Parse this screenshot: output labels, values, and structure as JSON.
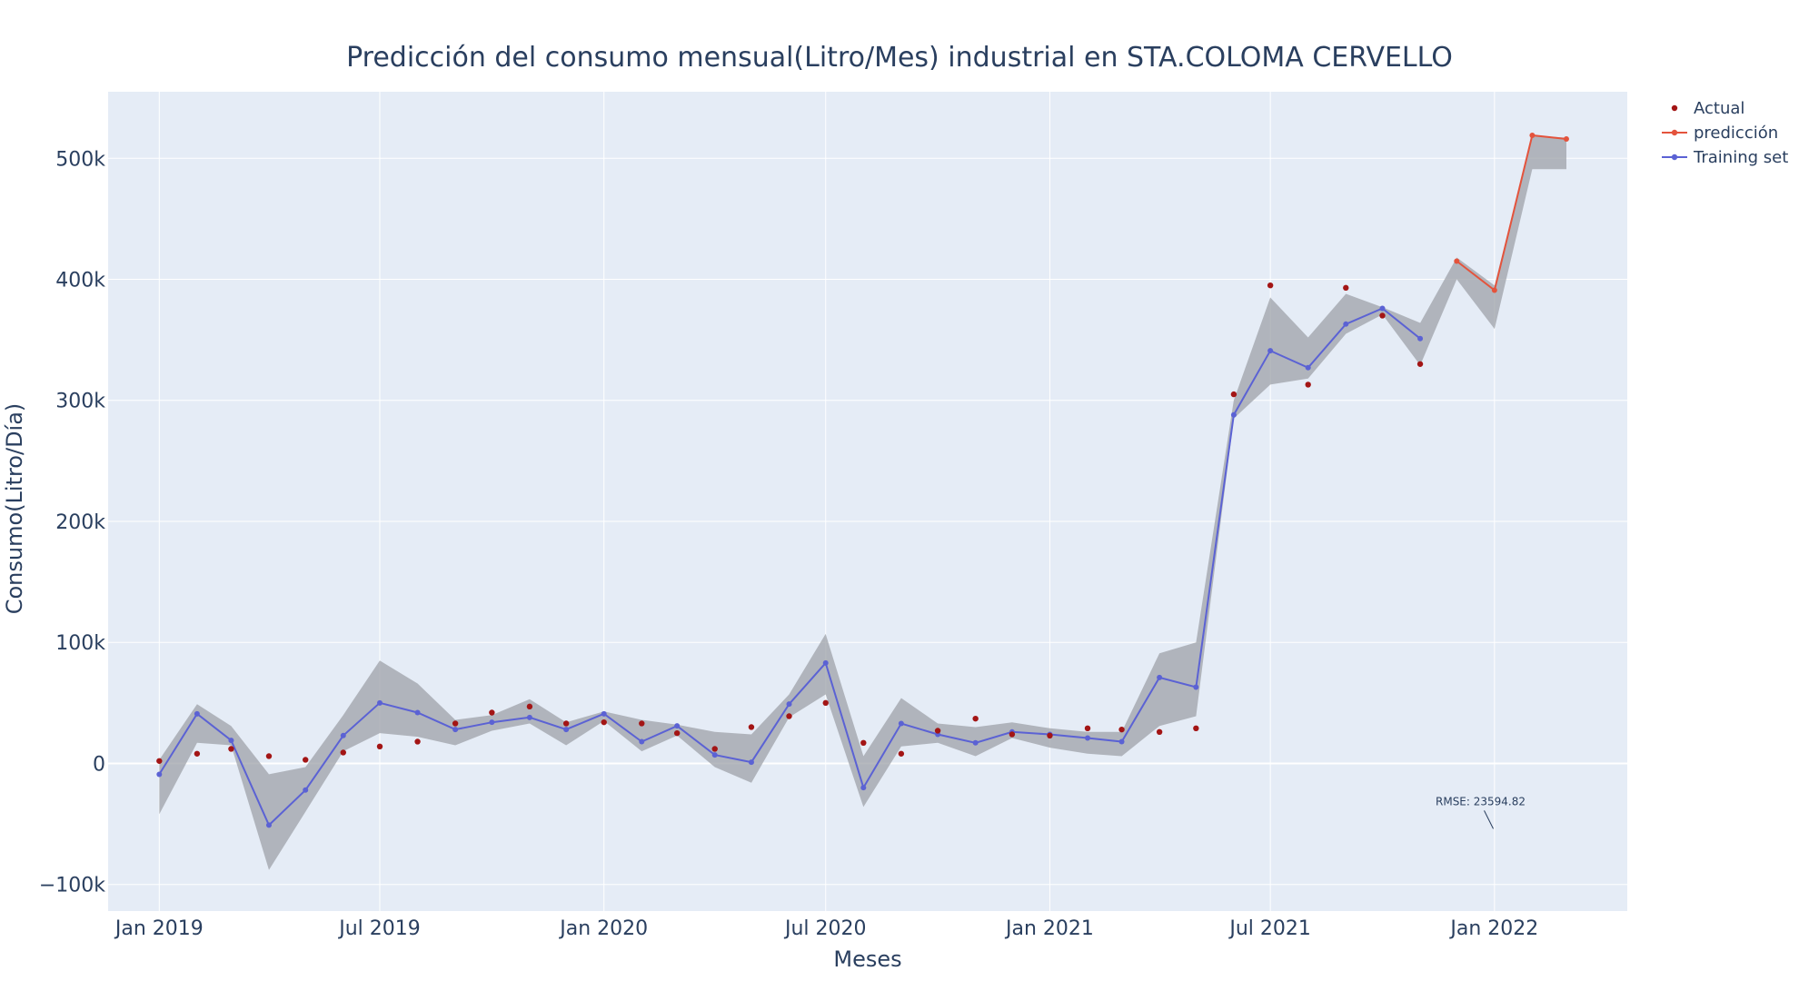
{
  "chart_data": {
    "type": "line",
    "title": "Predicción del consumo mensual(Litro/Mes) industrial en STA.COLOMA CERVELLO",
    "xlabel": "Meses",
    "ylabel": "Consumo(Litro/Día)",
    "xlim": [
      "2018-11-20",
      "2022-04-20"
    ],
    "ylim": [
      -122000,
      555000
    ],
    "grid": true,
    "legend_position": "top-right",
    "x_ticks": [
      {
        "date": "2019-01-01",
        "label": "Jan 2019"
      },
      {
        "date": "2019-07-01",
        "label": "Jul 2019"
      },
      {
        "date": "2020-01-01",
        "label": "Jan 2020"
      },
      {
        "date": "2020-07-01",
        "label": "Jul 2020"
      },
      {
        "date": "2021-01-01",
        "label": "Jan 2021"
      },
      {
        "date": "2021-07-01",
        "label": "Jul 2021"
      },
      {
        "date": "2022-01-01",
        "label": "Jan 2022"
      }
    ],
    "y_ticks": [
      {
        "value": -100000,
        "label": "−100k"
      },
      {
        "value": 0,
        "label": "0"
      },
      {
        "value": 100000,
        "label": "100k"
      },
      {
        "value": 200000,
        "label": "200k"
      },
      {
        "value": 300000,
        "label": "300k"
      },
      {
        "value": 400000,
        "label": "400k"
      },
      {
        "value": 500000,
        "label": "500k"
      }
    ],
    "colors": {
      "actual": "#a31515",
      "prediction": "#e4533c",
      "training": "#5b62d4",
      "band": "#9ea2a8",
      "plot_bg": "#e5ecf6",
      "grid": "#ffffff"
    },
    "series": [
      {
        "name": "Actual",
        "mode": "markers",
        "points": [
          [
            "2019-01-01",
            2000
          ],
          [
            "2019-02-01",
            8000
          ],
          [
            "2019-03-01",
            12000
          ],
          [
            "2019-04-01",
            6000
          ],
          [
            "2019-05-01",
            3000
          ],
          [
            "2019-06-01",
            9000
          ],
          [
            "2019-07-01",
            14000
          ],
          [
            "2019-08-01",
            18000
          ],
          [
            "2019-09-01",
            33000
          ],
          [
            "2019-10-01",
            42000
          ],
          [
            "2019-11-01",
            47000
          ],
          [
            "2019-12-01",
            33000
          ],
          [
            "2020-01-01",
            34000
          ],
          [
            "2020-02-01",
            33000
          ],
          [
            "2020-03-01",
            25000
          ],
          [
            "2020-04-01",
            12000
          ],
          [
            "2020-05-01",
            30000
          ],
          [
            "2020-06-01",
            39000
          ],
          [
            "2020-07-01",
            50000
          ],
          [
            "2020-08-01",
            17000
          ],
          [
            "2020-09-01",
            8000
          ],
          [
            "2020-10-01",
            27000
          ],
          [
            "2020-11-01",
            37000
          ],
          [
            "2020-12-01",
            24000
          ],
          [
            "2021-01-01",
            23000
          ],
          [
            "2021-02-01",
            29000
          ],
          [
            "2021-03-01",
            28000
          ],
          [
            "2021-04-01",
            26000
          ],
          [
            "2021-05-01",
            29000
          ],
          [
            "2021-06-01",
            305000
          ],
          [
            "2021-07-01",
            395000
          ],
          [
            "2021-08-01",
            313000
          ],
          [
            "2021-09-01",
            393000
          ],
          [
            "2021-10-01",
            370000
          ],
          [
            "2021-11-01",
            330000
          ]
        ]
      },
      {
        "name": "predicción",
        "mode": "lines+markers",
        "points": [
          [
            "2021-12-01",
            415000
          ],
          [
            "2022-01-01",
            391000
          ],
          [
            "2022-02-01",
            519000
          ],
          [
            "2022-03-01",
            516000
          ]
        ]
      },
      {
        "name": "Training set",
        "mode": "lines+markers",
        "points": [
          [
            "2019-01-01",
            -9000
          ],
          [
            "2019-02-01",
            41000
          ],
          [
            "2019-03-01",
            19000
          ],
          [
            "2019-04-01",
            -51000
          ],
          [
            "2019-05-01",
            -22000
          ],
          [
            "2019-06-01",
            23000
          ],
          [
            "2019-07-01",
            50000
          ],
          [
            "2019-08-01",
            42000
          ],
          [
            "2019-09-01",
            28000
          ],
          [
            "2019-10-01",
            34000
          ],
          [
            "2019-11-01",
            38000
          ],
          [
            "2019-12-01",
            28000
          ],
          [
            "2020-01-01",
            41000
          ],
          [
            "2020-02-01",
            18000
          ],
          [
            "2020-03-01",
            31000
          ],
          [
            "2020-04-01",
            7000
          ],
          [
            "2020-05-01",
            1000
          ],
          [
            "2020-06-01",
            49000
          ],
          [
            "2020-07-01",
            83000
          ],
          [
            "2020-08-01",
            -20000
          ],
          [
            "2020-09-01",
            33000
          ],
          [
            "2020-10-01",
            24000
          ],
          [
            "2020-11-01",
            17000
          ],
          [
            "2020-12-01",
            26000
          ],
          [
            "2021-01-01",
            24000
          ],
          [
            "2021-02-01",
            21000
          ],
          [
            "2021-03-01",
            18000
          ],
          [
            "2021-04-01",
            71000
          ],
          [
            "2021-05-01",
            63000
          ],
          [
            "2021-06-01",
            288000
          ],
          [
            "2021-07-01",
            341000
          ],
          [
            "2021-08-01",
            327000
          ],
          [
            "2021-09-01",
            363000
          ],
          [
            "2021-10-01",
            376000
          ],
          [
            "2021-11-01",
            351000
          ]
        ]
      }
    ],
    "confidence_band": [
      [
        "2019-01-01",
        -42000,
        3000
      ],
      [
        "2019-02-01",
        17000,
        49000
      ],
      [
        "2019-03-01",
        15000,
        31000
      ],
      [
        "2019-04-01",
        -88000,
        -9000
      ],
      [
        "2019-05-01",
        -40000,
        -3000
      ],
      [
        "2019-06-01",
        10000,
        40000
      ],
      [
        "2019-07-01",
        25000,
        85000
      ],
      [
        "2019-08-01",
        22000,
        66000
      ],
      [
        "2019-09-01",
        15000,
        36000
      ],
      [
        "2019-10-01",
        27000,
        40000
      ],
      [
        "2019-11-01",
        33000,
        53000
      ],
      [
        "2019-12-01",
        15000,
        34000
      ],
      [
        "2020-01-01",
        35000,
        43000
      ],
      [
        "2020-02-01",
        10000,
        36000
      ],
      [
        "2020-03-01",
        23000,
        32000
      ],
      [
        "2020-04-01",
        -3000,
        26000
      ],
      [
        "2020-05-01",
        -16000,
        24000
      ],
      [
        "2020-06-01",
        38000,
        57000
      ],
      [
        "2020-07-01",
        57000,
        107000
      ],
      [
        "2020-08-01",
        -36000,
        6000
      ],
      [
        "2020-09-01",
        14000,
        54000
      ],
      [
        "2020-10-01",
        17000,
        33000
      ],
      [
        "2020-11-01",
        6000,
        30000
      ],
      [
        "2020-12-01",
        21000,
        34000
      ],
      [
        "2021-01-01",
        13000,
        29000
      ],
      [
        "2021-02-01",
        8000,
        26000
      ],
      [
        "2021-03-01",
        6000,
        26000
      ],
      [
        "2021-04-01",
        31000,
        91000
      ],
      [
        "2021-05-01",
        39000,
        100000
      ],
      [
        "2021-06-01",
        285000,
        300000
      ],
      [
        "2021-07-01",
        313000,
        385000
      ],
      [
        "2021-08-01",
        318000,
        352000
      ],
      [
        "2021-09-01",
        355000,
        388000
      ],
      [
        "2021-10-01",
        371000,
        377000
      ],
      [
        "2021-11-01",
        329000,
        364000
      ],
      [
        "2021-12-01",
        400000,
        418000
      ],
      [
        "2022-01-01",
        359000,
        395000
      ],
      [
        "2022-02-01",
        491000,
        519000
      ],
      [
        "2022-03-01",
        491000,
        517000
      ]
    ],
    "annotation": {
      "text": "RMSE: 23594.82",
      "x": "2021-12-31",
      "y": -54000
    }
  }
}
